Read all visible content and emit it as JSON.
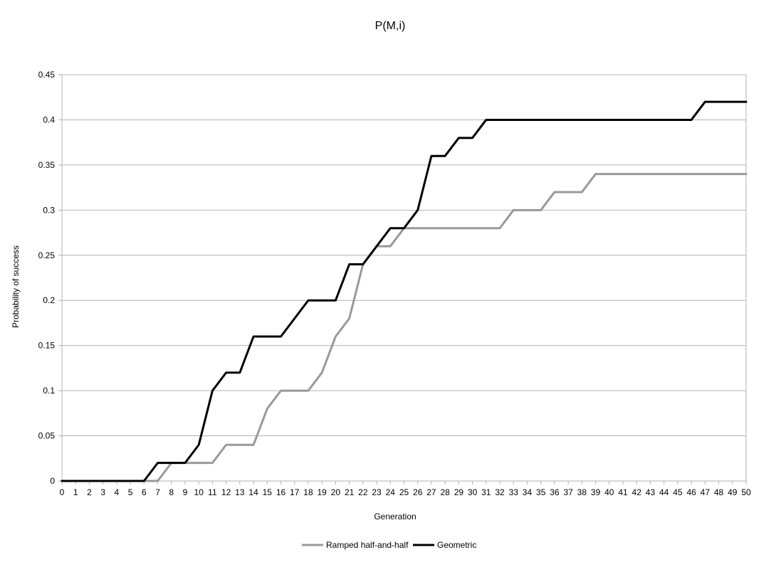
{
  "chart_data": {
    "type": "line",
    "title": "P(M,i)",
    "xlabel": "Generation",
    "ylabel": "Probability of success",
    "xlim": [
      0,
      50
    ],
    "ylim": [
      0,
      0.45
    ],
    "x_ticks": [
      0,
      1,
      2,
      3,
      4,
      5,
      6,
      7,
      8,
      9,
      10,
      11,
      12,
      13,
      14,
      15,
      16,
      17,
      18,
      19,
      20,
      21,
      22,
      23,
      24,
      25,
      26,
      27,
      28,
      29,
      30,
      31,
      32,
      33,
      34,
      35,
      36,
      37,
      38,
      39,
      40,
      41,
      42,
      43,
      44,
      45,
      46,
      47,
      48,
      49,
      50
    ],
    "y_ticks": [
      "0",
      "0.05",
      "0.1",
      "0.15",
      "0.2",
      "0.25",
      "0.3",
      "0.35",
      "0.4",
      "0.45"
    ],
    "grid": "horizontal",
    "legend": "bottom",
    "x": [
      0,
      1,
      2,
      3,
      4,
      5,
      6,
      7,
      8,
      9,
      10,
      11,
      12,
      13,
      14,
      15,
      16,
      17,
      18,
      19,
      20,
      21,
      22,
      23,
      24,
      25,
      26,
      27,
      28,
      29,
      30,
      31,
      32,
      33,
      34,
      35,
      36,
      37,
      38,
      39,
      40,
      41,
      42,
      43,
      44,
      45,
      46,
      47,
      48,
      49,
      50
    ],
    "series": [
      {
        "name": "Ramped half-and-half",
        "color": "#999999",
        "values": [
          0,
          0,
          0,
          0,
          0,
          0,
          0,
          0,
          0.02,
          0.02,
          0.02,
          0.02,
          0.04,
          0.04,
          0.04,
          0.08,
          0.1,
          0.1,
          0.1,
          0.12,
          0.16,
          0.18,
          0.24,
          0.26,
          0.26,
          0.28,
          0.28,
          0.28,
          0.28,
          0.28,
          0.28,
          0.28,
          0.28,
          0.3,
          0.3,
          0.3,
          0.32,
          0.32,
          0.32,
          0.34,
          0.34,
          0.34,
          0.34,
          0.34,
          0.34,
          0.34,
          0.34,
          0.34,
          0.34,
          0.34,
          0.34
        ]
      },
      {
        "name": "Geometric",
        "color": "#000000",
        "values": [
          0,
          0,
          0,
          0,
          0,
          0,
          0,
          0.02,
          0.02,
          0.02,
          0.04,
          0.1,
          0.12,
          0.12,
          0.16,
          0.16,
          0.16,
          0.18,
          0.2,
          0.2,
          0.2,
          0.24,
          0.24,
          0.26,
          0.28,
          0.28,
          0.3,
          0.36,
          0.36,
          0.38,
          0.38,
          0.4,
          0.4,
          0.4,
          0.4,
          0.4,
          0.4,
          0.4,
          0.4,
          0.4,
          0.4,
          0.4,
          0.4,
          0.4,
          0.4,
          0.4,
          0.4,
          0.42,
          0.42,
          0.42,
          0.42
        ]
      }
    ]
  }
}
